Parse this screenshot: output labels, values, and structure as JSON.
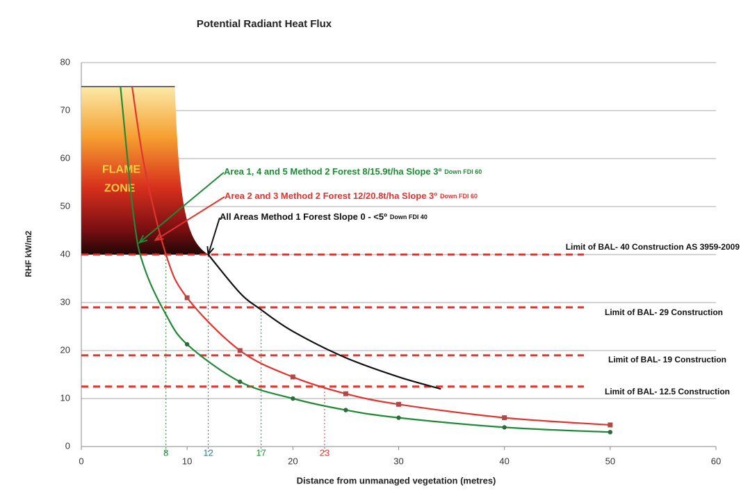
{
  "chart_data": {
    "type": "line",
    "title": "Potential Radiant Heat Flux",
    "x_label": "Distance from unmanaged vegetation (metres)",
    "y_label": "RHF kW/m2",
    "xlim": [
      0,
      60
    ],
    "xticks": [
      0,
      10,
      20,
      30,
      40,
      50,
      60
    ],
    "ylim": [
      0,
      80
    ],
    "yticks": [
      0,
      10,
      20,
      30,
      40,
      50,
      60,
      70,
      80
    ],
    "grid": true,
    "series": [
      {
        "name": "Area 1, 4 and 5 Method 2  Forest  8/15.9t/ha Slope 3º",
        "name_small": "Down  FDI 60",
        "color": "#1f8a35",
        "x": [
          3.7,
          5,
          6,
          8,
          10,
          15,
          20,
          25,
          30,
          40,
          50
        ],
        "values": [
          75,
          47,
          37,
          27.5,
          21.3,
          13.5,
          10,
          7.6,
          6,
          4,
          3
        ],
        "arrow_to": [
          5.5,
          42.5
        ]
      },
      {
        "name": "Area 2 and 3 Method 2  Forest  12/20.8t/ha Slope 3º",
        "name_small": "Down  FDI 60",
        "color": "#e0342e",
        "x": [
          4.8,
          6,
          8,
          10,
          15,
          20,
          25,
          30,
          40,
          50
        ],
        "values": [
          75,
          58,
          40,
          31,
          20,
          14.5,
          11,
          8.8,
          6,
          4.5
        ],
        "arrow_to": [
          7,
          43
        ]
      },
      {
        "name": "All Areas Method 1  Forest Slope 0 - <5º",
        "name_small": "Down  FDI 40",
        "color": "#111111",
        "x": [
          12,
          15,
          17,
          20,
          25,
          30,
          34
        ],
        "values": [
          40,
          32,
          28.5,
          24,
          18.5,
          14.5,
          12
        ],
        "arrow_to": [
          12,
          40
        ]
      }
    ],
    "reference_lines": [
      {
        "value": 40,
        "label": "Limit of BAL- 40 Construction AS 3959-2009"
      },
      {
        "value": 29,
        "label": "Limit of BAL- 29  Construction"
      },
      {
        "value": 19,
        "label": "Limit of BAL- 19 Construction"
      },
      {
        "value": 12.5,
        "label": "Limit of BAL- 12.5 Construction"
      }
    ],
    "x_markers": [
      {
        "value": 8,
        "height": 40,
        "color": "#1f8a35"
      },
      {
        "value": 12,
        "height": 40,
        "color": "#2a7a8a"
      },
      {
        "value": 17,
        "height": 29,
        "color": "#1f8a35"
      },
      {
        "value": 23,
        "height": 12.5,
        "color": "#e0342e"
      }
    ],
    "flame_zone": {
      "label": [
        "FLAME",
        "ZONE"
      ],
      "x": [
        0,
        12
      ],
      "y": [
        40,
        75
      ]
    }
  }
}
